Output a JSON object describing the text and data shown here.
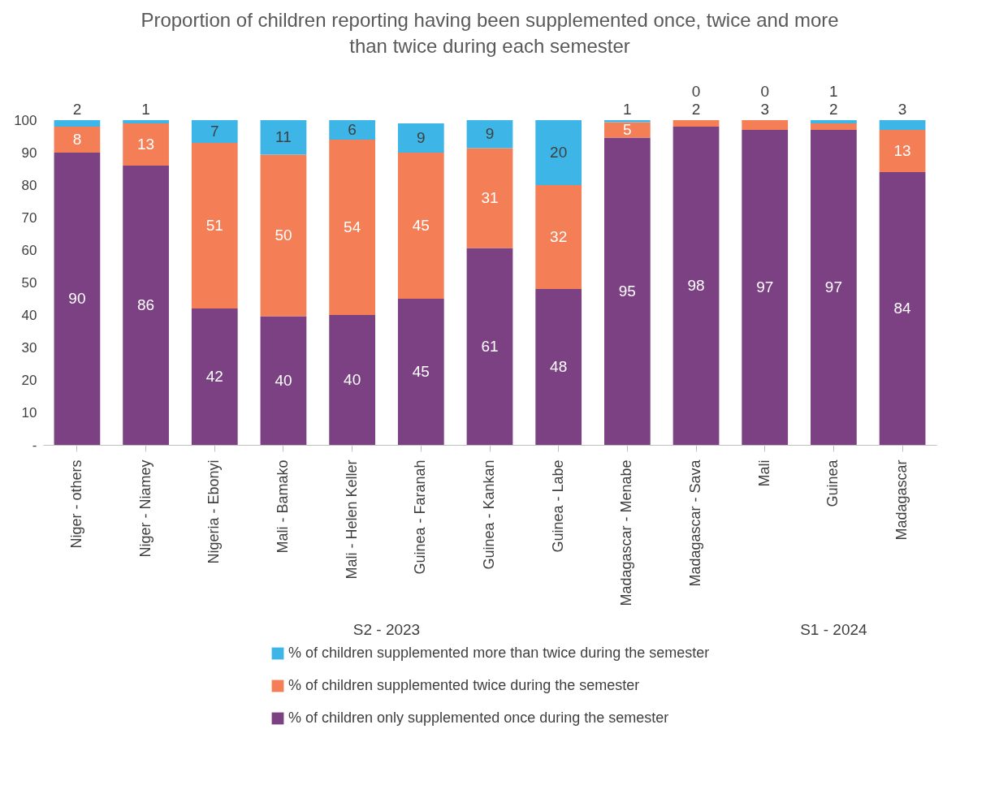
{
  "chart_data": {
    "type": "bar",
    "stacked": true,
    "title": "Proportion of children reporting having been supplemented once, twice and more than twice during each semester",
    "categories": [
      "Niger -  others",
      "Niger - Niamey",
      "Nigeria - Ebonyi",
      "Mali - Bamako",
      "Mali - Helen Keller",
      "Guinea - Faranah",
      "Guinea - Kankan",
      "Guinea - Labe",
      "Madagascar - Menabe",
      "Madagascar - Sava",
      "Mali",
      "Guinea",
      "Madagascar"
    ],
    "series": [
      {
        "name": "% of children only supplemented once during the semester",
        "color": "#7b4183",
        "values": [
          90,
          86,
          42,
          39.6,
          40,
          45,
          60.6,
          48,
          94.6,
          98,
          97,
          97,
          84
        ],
        "value_labels": [
          "90",
          "86",
          "42",
          "40",
          "40",
          "45",
          "61",
          "48",
          "95",
          "98",
          "97",
          "97",
          "84"
        ]
      },
      {
        "name": "% of children supplemented twice during the semester",
        "color": "#f47e55",
        "values": [
          8,
          13,
          51,
          49.8,
          54,
          45,
          30.8,
          32,
          4.8,
          2,
          3,
          2,
          13
        ],
        "value_labels": [
          "8",
          "13",
          "51",
          "50",
          "54",
          "45",
          "31",
          "32",
          "5",
          "2",
          "3",
          "2",
          "13"
        ]
      },
      {
        "name": "% of children supplemented more than twice during the semester",
        "color": "#3db5e6",
        "values": [
          2,
          1,
          7,
          10.6,
          6,
          9,
          8.6,
          20,
          0.6,
          0,
          0,
          1,
          3
        ],
        "value_labels": [
          "2",
          "1",
          "7",
          "11",
          "6",
          "9",
          "9",
          "20",
          "1",
          "0",
          "0",
          "1",
          "3"
        ]
      }
    ],
    "ylim": [
      0,
      100
    ],
    "yticks": [
      {
        "value": 0,
        "label": "-"
      },
      10,
      20,
      30,
      40,
      50,
      60,
      70,
      80,
      90,
      100
    ],
    "grid": false,
    "legend": "bottom",
    "annotations": [
      "S2 - 2023",
      "S1 - 2024"
    ]
  }
}
